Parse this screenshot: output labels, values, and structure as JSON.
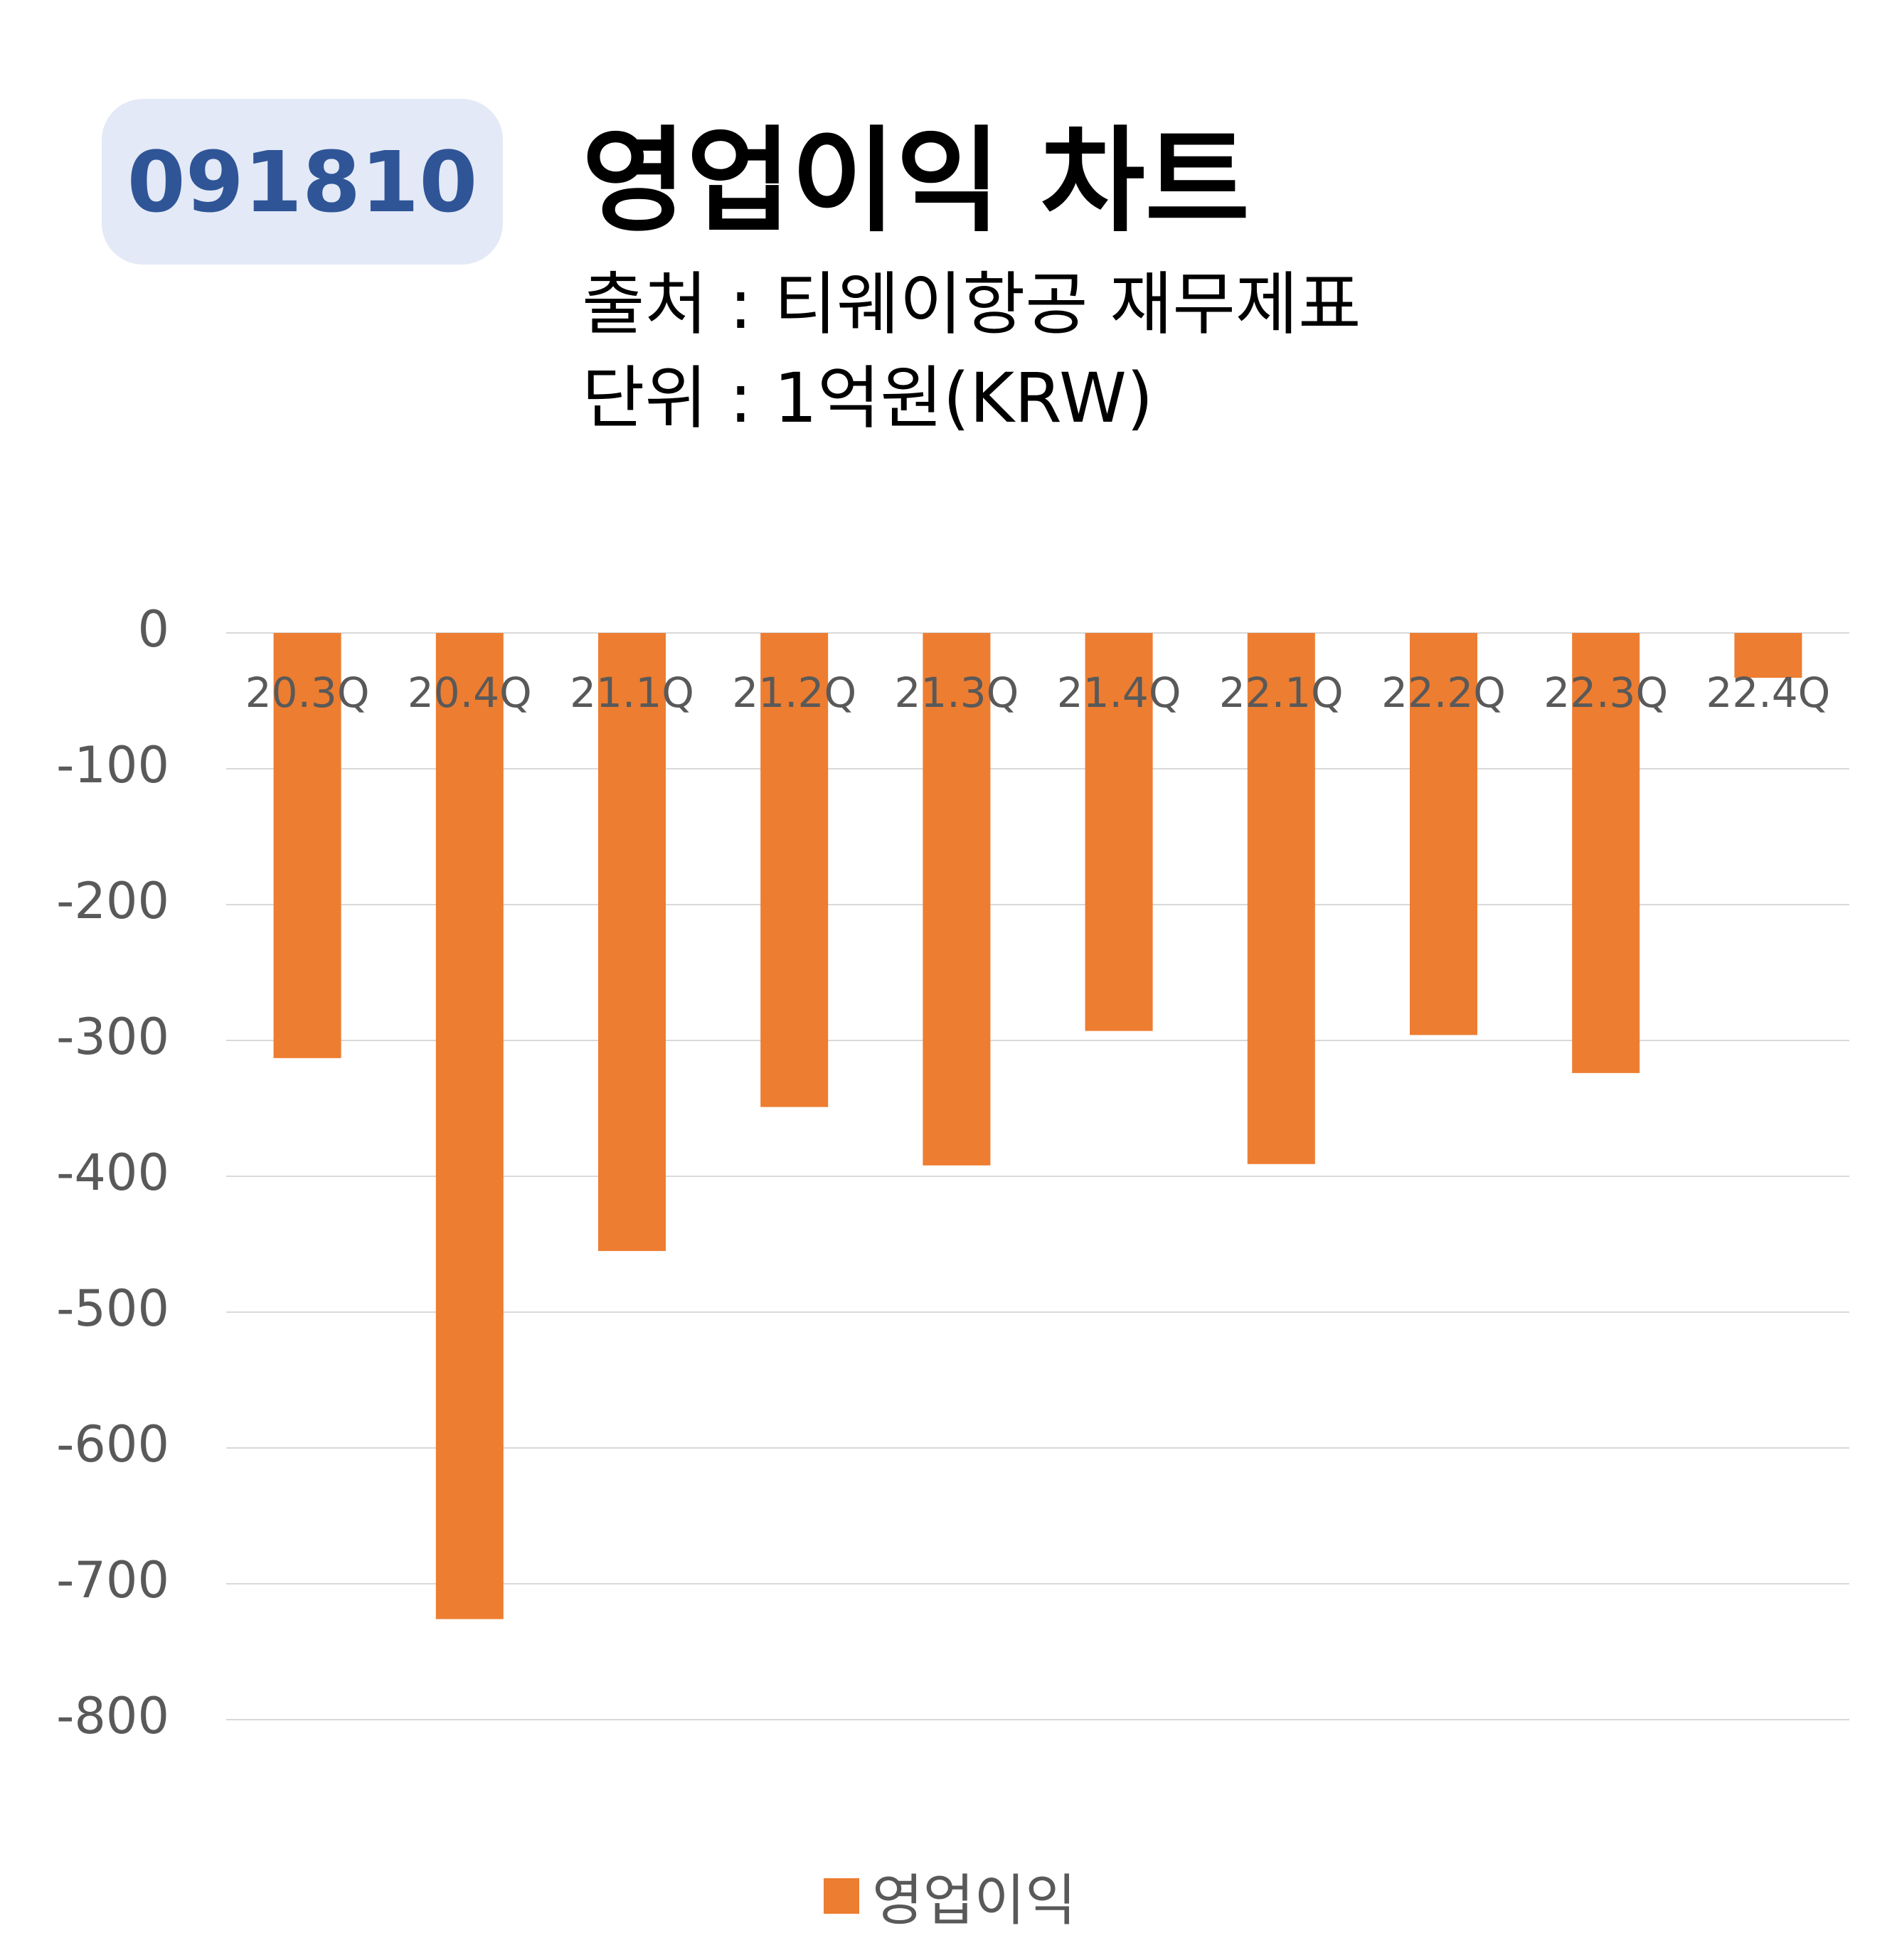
{
  "header": {
    "ticker": "091810",
    "title": "영업이익 차트",
    "source_line": "출처 : 티웨이항공 재무제표",
    "unit_line": "단위 : 1억원(KRW)"
  },
  "colors": {
    "bar": "#ed7d31",
    "badge_bg": "#e3e9f6",
    "badge_text": "#2f5597",
    "grid": "#d9d9d9",
    "tick_text": "#595959"
  },
  "chart_data": {
    "type": "bar",
    "title": "영업이익 차트",
    "categories": [
      "20.3Q",
      "20.4Q",
      "21.1Q",
      "21.2Q",
      "21.3Q",
      "21.4Q",
      "22.1Q",
      "22.2Q",
      "22.3Q",
      "22.4Q"
    ],
    "series": [
      {
        "name": "영업이익",
        "values": [
          -313,
          -726,
          -455,
          -349,
          -392,
          -293,
          -391,
          -296,
          -324,
          -33
        ]
      }
    ],
    "ylim": [
      -800,
      0
    ],
    "yticks": [
      0,
      -100,
      -200,
      -300,
      -400,
      -500,
      -600,
      -700,
      -800
    ],
    "grid": true,
    "legend": "bottom-center"
  }
}
